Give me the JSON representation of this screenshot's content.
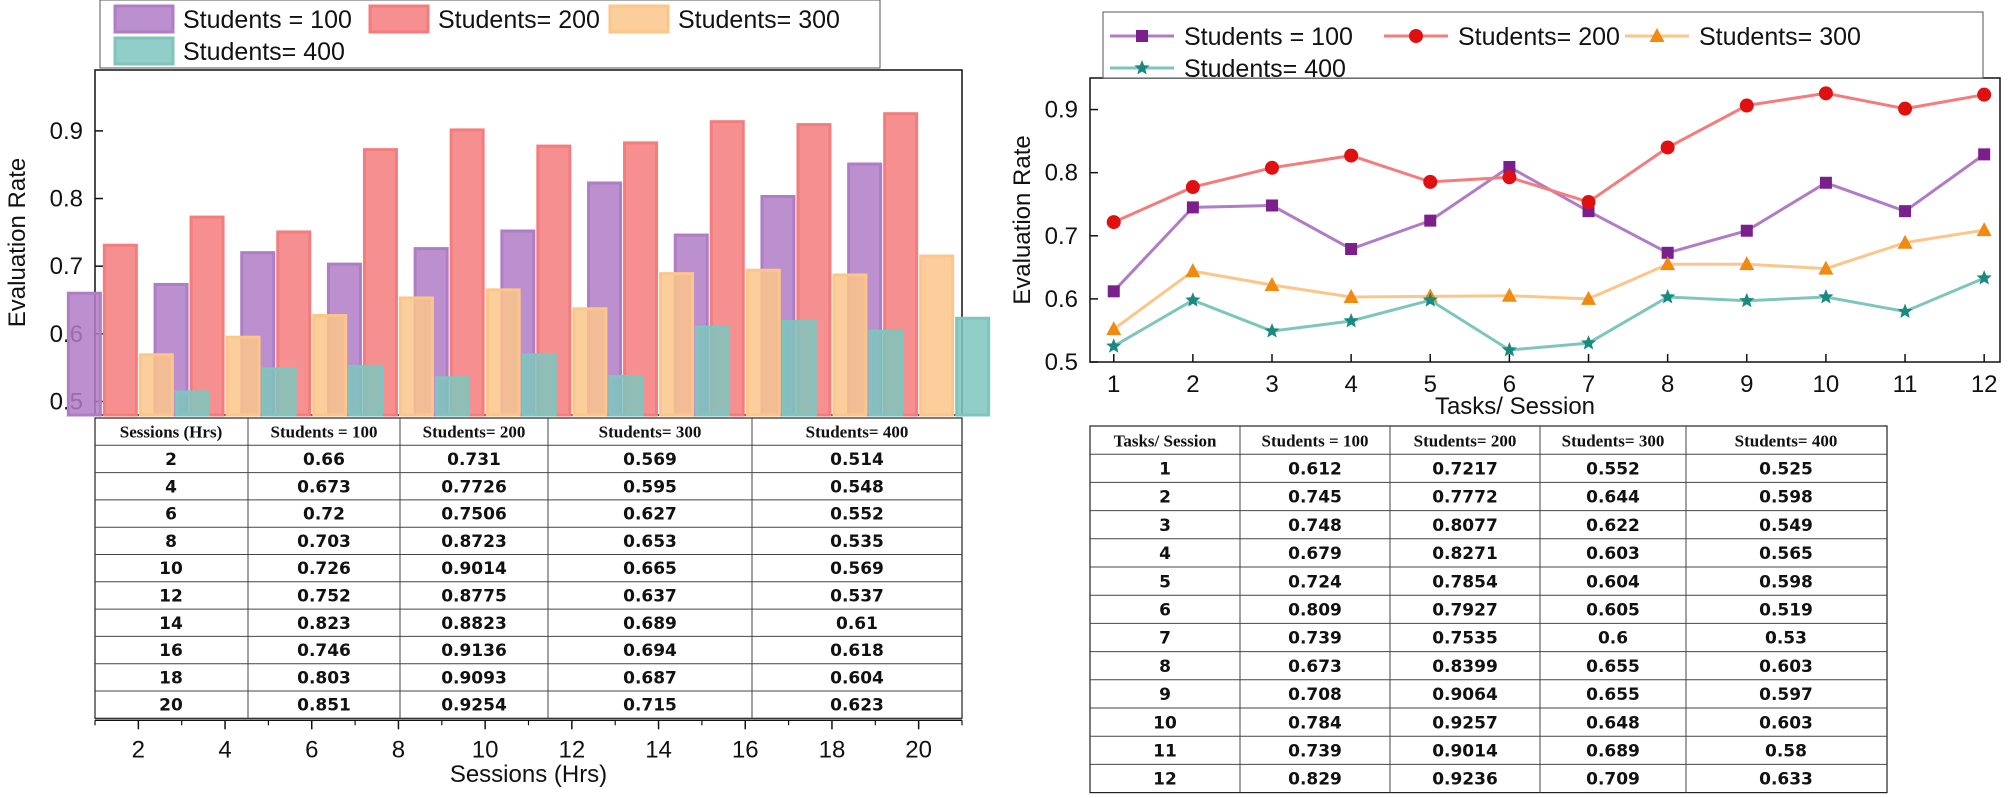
{
  "chart_data": [
    {
      "type": "bar",
      "xlabel": "Sessions (Hrs)",
      "ylabel": "Evaluation Rate",
      "categories": [
        "2",
        "4",
        "6",
        "8",
        "10",
        "12",
        "14",
        "16",
        "18",
        "20"
      ],
      "xticks": [
        "2",
        "4",
        "6",
        "8",
        "10",
        "12",
        "14",
        "16",
        "18",
        "20"
      ],
      "yticks": [
        "0.5",
        "0.6",
        "0.7",
        "0.8",
        "0.9"
      ],
      "ylim": [
        0.48,
        0.99
      ],
      "legend_position": "top",
      "series": [
        {
          "name": "Students = 100",
          "color": "#b07cc6",
          "values": [
            0.66,
            0.673,
            0.72,
            0.703,
            0.726,
            0.752,
            0.823,
            0.746,
            0.803,
            0.851
          ]
        },
        {
          "name": "Students= 200",
          "color": "#f47c7c",
          "values": [
            0.731,
            0.7726,
            0.7506,
            0.8723,
            0.9014,
            0.8775,
            0.8823,
            0.9136,
            0.9093,
            0.9254
          ]
        },
        {
          "name": "Students= 300",
          "color": "#fcc68a",
          "values": [
            0.569,
            0.595,
            0.627,
            0.653,
            0.665,
            0.637,
            0.689,
            0.694,
            0.687,
            0.715
          ]
        },
        {
          "name": "Students= 400",
          "color": "#7ec6bd",
          "values": [
            0.514,
            0.548,
            0.552,
            0.535,
            0.569,
            0.537,
            0.61,
            0.618,
            0.604,
            0.623
          ]
        }
      ],
      "table": {
        "headers": [
          "Sessions (Hrs)",
          "Students = 100",
          "Students= 200",
          "Students= 300",
          "Students= 400"
        ],
        "rows": [
          [
            "2",
            "0.66",
            "0.731",
            "0.569",
            "0.514"
          ],
          [
            "4",
            "0.673",
            "0.7726",
            "0.595",
            "0.548"
          ],
          [
            "6",
            "0.72",
            "0.7506",
            "0.627",
            "0.552"
          ],
          [
            "8",
            "0.703",
            "0.8723",
            "0.653",
            "0.535"
          ],
          [
            "10",
            "0.726",
            "0.9014",
            "0.665",
            "0.569"
          ],
          [
            "12",
            "0.752",
            "0.8775",
            "0.637",
            "0.537"
          ],
          [
            "14",
            "0.823",
            "0.8823",
            "0.689",
            "0.61"
          ],
          [
            "16",
            "0.746",
            "0.9136",
            "0.694",
            "0.618"
          ],
          [
            "18",
            "0.803",
            "0.9093",
            "0.687",
            "0.604"
          ],
          [
            "20",
            "0.851",
            "0.9254",
            "0.715",
            "0.623"
          ]
        ]
      }
    },
    {
      "type": "line",
      "xlabel": "Tasks/ Session",
      "ylabel": "Evaluation Rate",
      "x": [
        1,
        2,
        3,
        4,
        5,
        6,
        7,
        8,
        9,
        10,
        11,
        12
      ],
      "xticks": [
        "1",
        "2",
        "3",
        "4",
        "5",
        "6",
        "7",
        "8",
        "9",
        "10",
        "11",
        "12"
      ],
      "yticks": [
        "0.5",
        "0.6",
        "0.7",
        "0.8",
        "0.9"
      ],
      "ylim": [
        0.5,
        0.95
      ],
      "xlim": [
        0.7,
        12.2
      ],
      "legend_position": "top",
      "series": [
        {
          "name": "Students = 100",
          "color": "#b07cc6",
          "marker": "square",
          "markerColor": "#7a1f8c",
          "values": [
            0.612,
            0.745,
            0.748,
            0.679,
            0.724,
            0.809,
            0.739,
            0.673,
            0.708,
            0.784,
            0.739,
            0.829
          ]
        },
        {
          "name": "Students= 200",
          "color": "#f47c7c",
          "marker": "circle",
          "markerColor": "#e01010",
          "values": [
            0.7217,
            0.7772,
            0.8077,
            0.8271,
            0.7854,
            0.7927,
            0.7535,
            0.8399,
            0.9064,
            0.9257,
            0.9014,
            0.9236
          ]
        },
        {
          "name": "Students= 300",
          "color": "#fcc68a",
          "marker": "triangle",
          "markerColor": "#f08a10",
          "values": [
            0.552,
            0.644,
            0.622,
            0.603,
            0.604,
            0.605,
            0.6,
            0.655,
            0.655,
            0.648,
            0.689,
            0.709
          ]
        },
        {
          "name": "Students= 400",
          "color": "#7ec6bd",
          "marker": "star",
          "markerColor": "#1a8a80",
          "values": [
            0.525,
            0.598,
            0.549,
            0.565,
            0.598,
            0.519,
            0.53,
            0.603,
            0.597,
            0.603,
            0.58,
            0.633
          ]
        }
      ],
      "table": {
        "headers": [
          "Tasks/ Session",
          "Students = 100",
          "Students= 200",
          "Students= 300",
          "Students= 400"
        ],
        "rows": [
          [
            "1",
            "0.612",
            "0.7217",
            "0.552",
            "0.525"
          ],
          [
            "2",
            "0.745",
            "0.7772",
            "0.644",
            "0.598"
          ],
          [
            "3",
            "0.748",
            "0.8077",
            "0.622",
            "0.549"
          ],
          [
            "4",
            "0.679",
            "0.8271",
            "0.603",
            "0.565"
          ],
          [
            "5",
            "0.724",
            "0.7854",
            "0.604",
            "0.598"
          ],
          [
            "6",
            "0.809",
            "0.7927",
            "0.605",
            "0.519"
          ],
          [
            "7",
            "0.739",
            "0.7535",
            "0.6",
            "0.53"
          ],
          [
            "8",
            "0.673",
            "0.8399",
            "0.655",
            "0.603"
          ],
          [
            "9",
            "0.708",
            "0.9064",
            "0.655",
            "0.597"
          ],
          [
            "10",
            "0.784",
            "0.9257",
            "0.648",
            "0.603"
          ],
          [
            "11",
            "0.739",
            "0.9014",
            "0.689",
            "0.58"
          ],
          [
            "12",
            "0.829",
            "0.9236",
            "0.709",
            "0.633"
          ]
        ]
      }
    }
  ]
}
